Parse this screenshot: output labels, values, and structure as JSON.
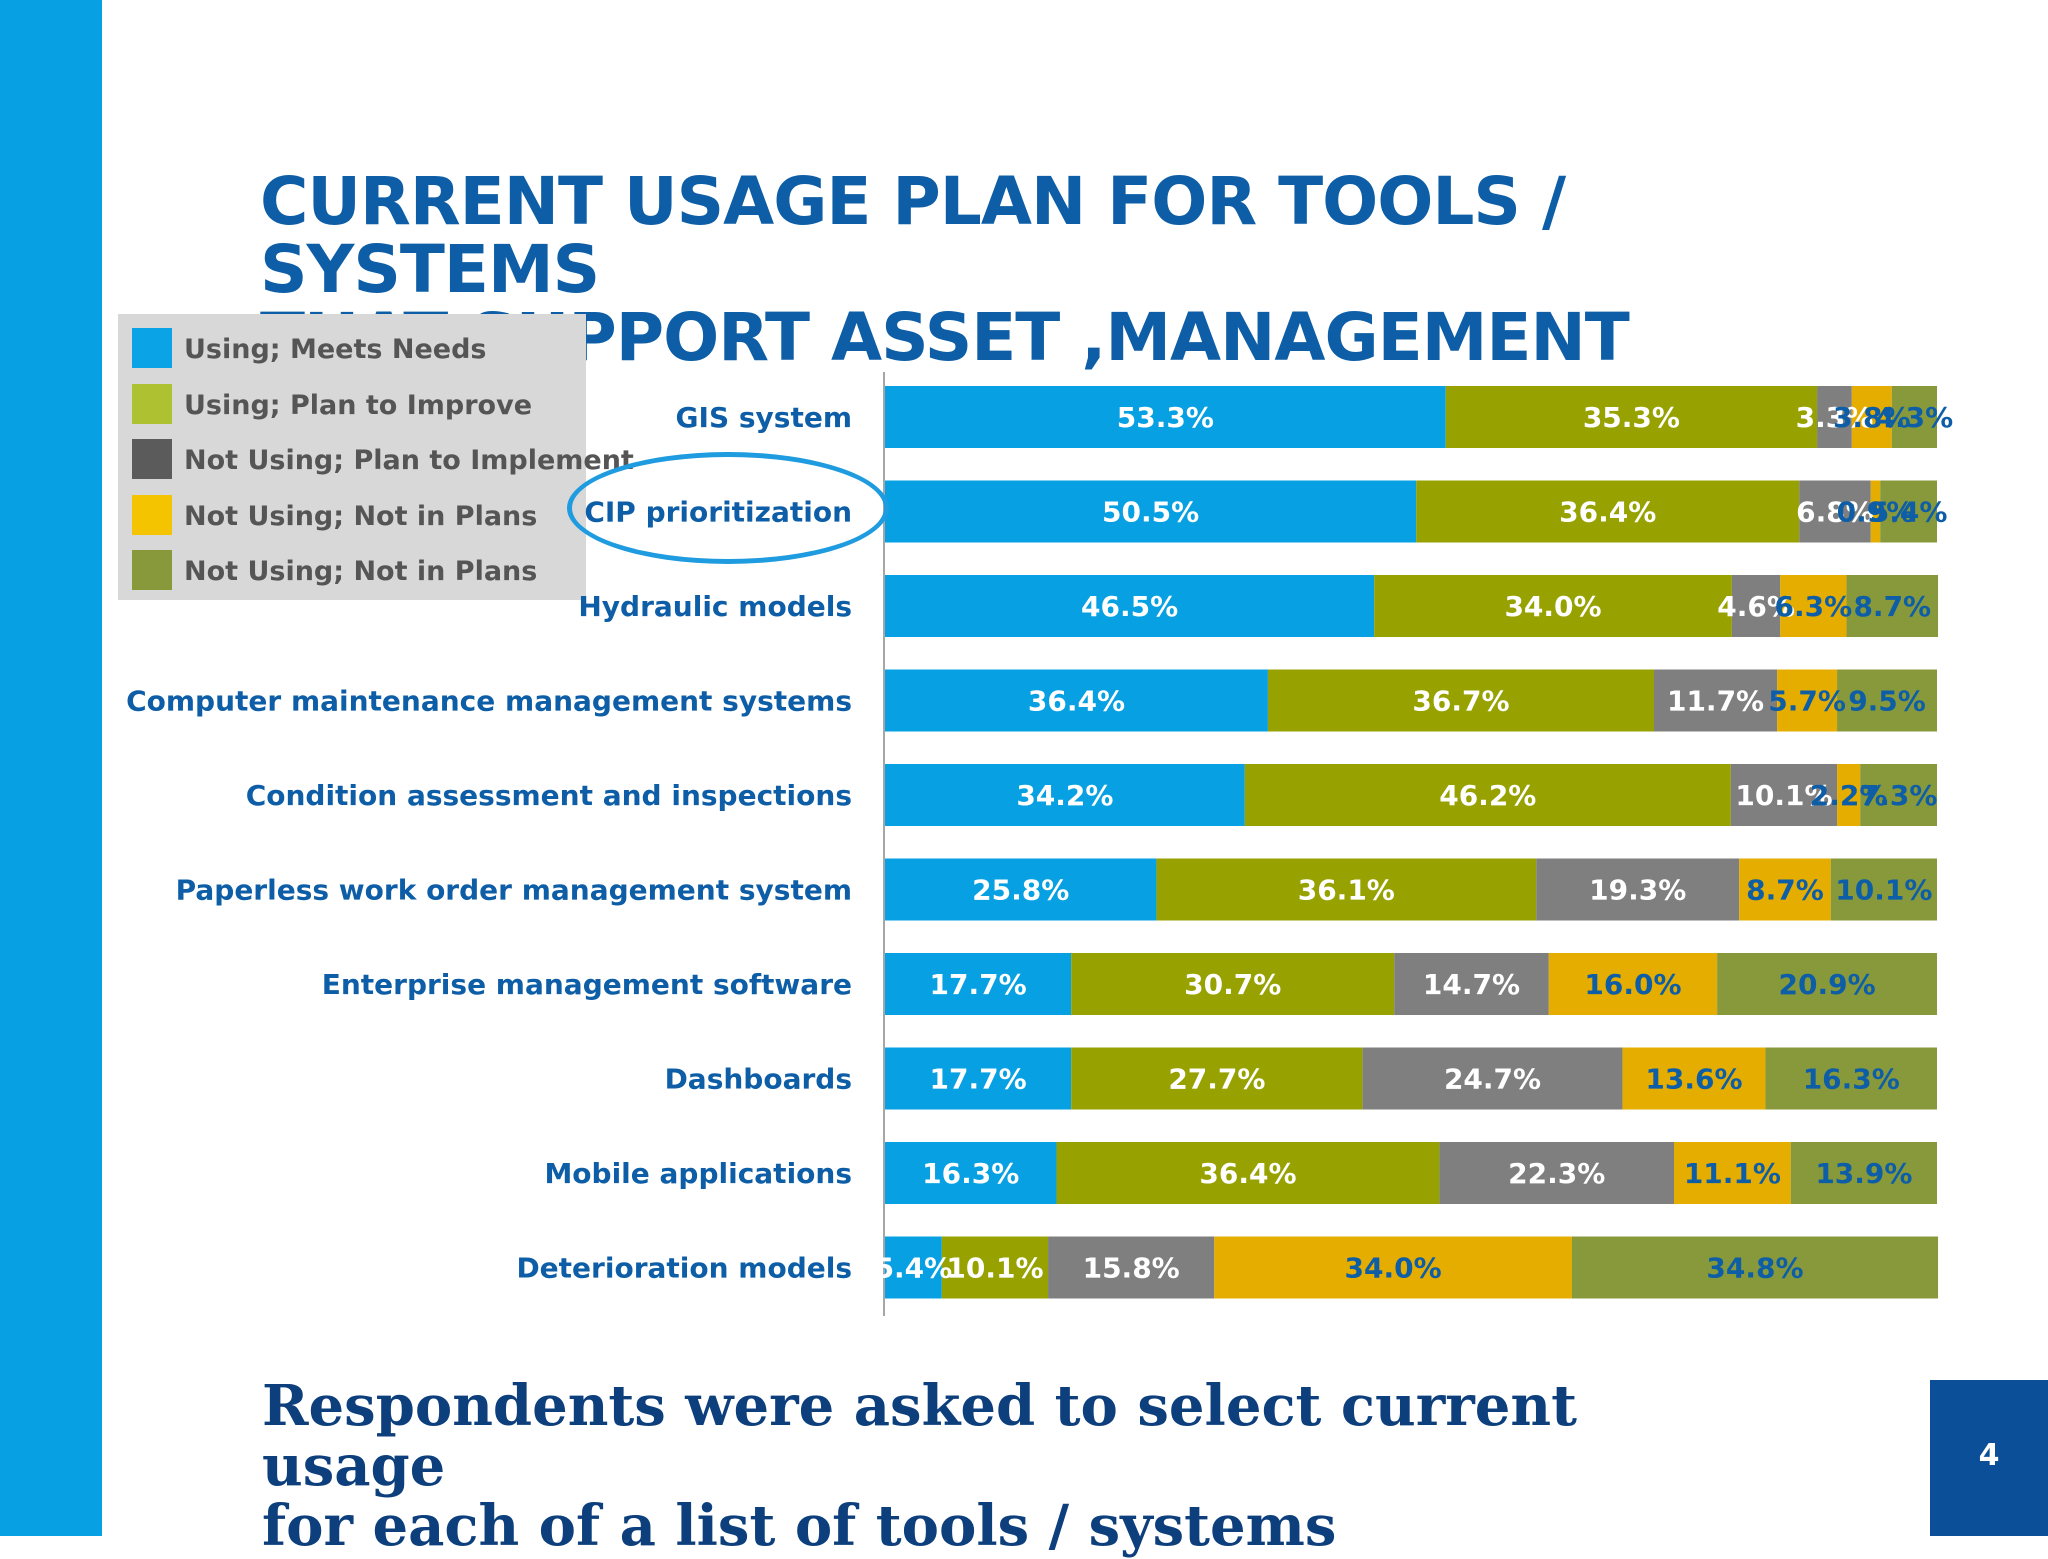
{
  "slide": {
    "title_line1": "CURRENT USAGE PLAN FOR TOOLS / SYSTEMS",
    "title_line2": "THAT SUPPORT ASSET ,MANAGEMENT",
    "footer_line1": "Respondents were asked to select current usage",
    "footer_line2": "for each of a list of tools / systems",
    "page_number": "4",
    "highlighted_category": "CIP prioritization"
  },
  "chart_data": {
    "type": "bar",
    "orientation": "horizontal",
    "stacked": "100%",
    "xlim": [
      0,
      100
    ],
    "legend_position": "top-left",
    "grid": false,
    "categories": [
      "GIS system",
      "CIP prioritization",
      "Hydraulic models",
      "Computer maintenance management systems",
      "Condition assessment and inspections",
      "Paperless work order management system",
      "Enterprise management software",
      "Dashboards",
      "Mobile applications",
      "Deterioration models"
    ],
    "series": [
      {
        "name": "Using; Meets Needs",
        "color": "#06a0e3",
        "label_color": "#ffffff",
        "values": [
          53.3,
          50.5,
          46.5,
          36.4,
          34.2,
          25.8,
          17.7,
          17.7,
          16.3,
          5.4
        ],
        "labels": [
          "53.3%",
          "50.5%",
          "46.5%",
          "36.4%",
          "34.2%",
          "25.8%",
          "17.7%",
          "17.7%",
          "16.3%",
          "5.4%"
        ]
      },
      {
        "name": "Using; Plan to Improve",
        "color": "#97a200",
        "label_color": "#ffffff",
        "values": [
          35.3,
          36.4,
          34.0,
          36.7,
          46.2,
          36.1,
          30.7,
          27.7,
          36.4,
          10.1
        ],
        "labels": [
          "35.3%",
          "36.4%",
          "34.0%",
          "36.7%",
          "46.2%",
          "36.1%",
          "30.7%",
          "27.7%",
          "36.4%",
          "10.1%"
        ]
      },
      {
        "name": "Not Using; Plan to Implement",
        "color": "#7f7f7f",
        "label_color": "#ffffff",
        "values": [
          3.3,
          6.8,
          4.6,
          11.7,
          10.1,
          19.3,
          14.7,
          24.7,
          22.3,
          15.8
        ],
        "labels": [
          "3.3%",
          "6.8%",
          "4.6%",
          "11.7%",
          "10.1%",
          "19.3%",
          "14.7%",
          "24.7%",
          "22.3%",
          "15.8%"
        ]
      },
      {
        "name": "Not Using; Not in Plans",
        "color": "#e5ad00",
        "label_color": "#0d5ea6",
        "values": [
          3.8,
          0.9,
          6.3,
          5.7,
          2.2,
          8.7,
          16.0,
          13.6,
          11.1,
          34.0
        ],
        "labels": [
          "3.8%",
          "0.9%",
          "6.3%",
          "5.7%",
          "2.2%",
          "8.7%",
          "16.0%",
          "13.6%",
          "11.1%",
          "34.0%"
        ]
      },
      {
        "name": "Not Using; Not in Plans",
        "color": "#88993b",
        "label_color": "#0d5ea6",
        "values": [
          4.3,
          5.4,
          8.7,
          9.5,
          7.3,
          10.1,
          20.9,
          16.3,
          13.9,
          34.8
        ],
        "labels": [
          "4.3%",
          "5.4%",
          "8.7%",
          "9.5%",
          "7.3%",
          "10.1%",
          "20.9%",
          "16.3%",
          "13.9%",
          "34.8%"
        ]
      }
    ]
  }
}
